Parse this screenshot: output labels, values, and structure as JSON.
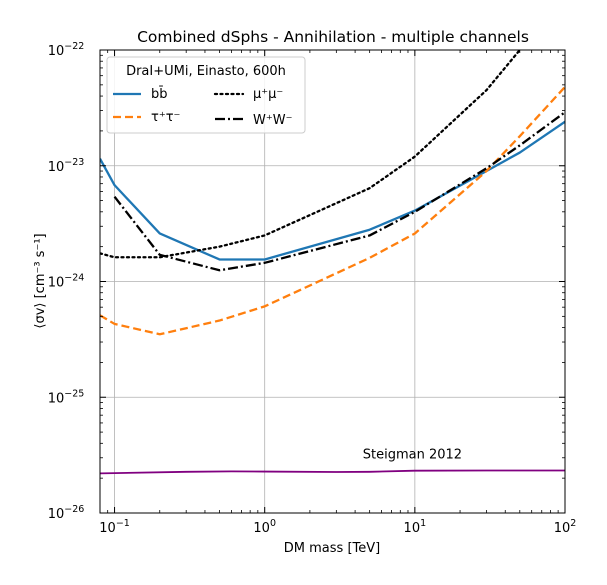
{
  "chart_data": {
    "type": "line",
    "title": "Combined dSphs - Annihilation - multiple channels",
    "xlabel": "DM mass [TeV]",
    "ylabel": "⟨σv⟩ [cm⁻³ s⁻¹]",
    "xscale": "log",
    "yscale": "log",
    "xlim": [
      0.08,
      100
    ],
    "ylim": [
      1e-26,
      1e-22
    ],
    "grid": true,
    "x_ticks": [
      {
        "value": 0.1,
        "base": "10",
        "exp": "−1"
      },
      {
        "value": 1,
        "base": "10",
        "exp": "0"
      },
      {
        "value": 10,
        "base": "10",
        "exp": "1"
      },
      {
        "value": 100,
        "base": "10",
        "exp": "2"
      }
    ],
    "y_ticks": [
      {
        "value": 1e-26,
        "base": "10",
        "exp": "−26"
      },
      {
        "value": 1e-25,
        "base": "10",
        "exp": "−25"
      },
      {
        "value": 1e-24,
        "base": "10",
        "exp": "−24"
      },
      {
        "value": 1e-23,
        "base": "10",
        "exp": "−23"
      },
      {
        "value": 1e-22,
        "base": "10",
        "exp": "−22"
      }
    ],
    "legend": {
      "title": "DraI+UMi, Einasto, 600h",
      "placement": "top-left"
    },
    "series": [
      {
        "id": "bb",
        "label": "bb̄",
        "color": "#1f77b4",
        "style": "solid",
        "x": [
          0.08,
          0.1,
          0.2,
          0.5,
          1,
          5,
          10,
          50,
          100
        ],
        "y": [
          1.15e-23,
          6.8e-24,
          2.6e-24,
          1.55e-24,
          1.55e-24,
          2.8e-24,
          4.1e-24,
          1.3e-23,
          2.4e-23
        ]
      },
      {
        "id": "tautau",
        "label": "τ⁺τ⁻",
        "color": "#ff7f0e",
        "style": "dashed",
        "x": [
          0.08,
          0.1,
          0.2,
          0.5,
          1,
          5,
          10,
          30,
          50,
          100
        ],
        "y": [
          5.1e-25,
          4.3e-25,
          3.5e-25,
          4.6e-25,
          6.1e-25,
          1.6e-24,
          2.6e-24,
          9e-24,
          1.8e-23,
          4.8e-23
        ]
      },
      {
        "id": "mumu",
        "label": "μ⁺μ⁻",
        "color": "#000000",
        "style": "dotted",
        "x": [
          0.08,
          0.1,
          0.2,
          0.5,
          1,
          5,
          10,
          30,
          50
        ],
        "y": [
          1.75e-24,
          1.62e-24,
          1.62e-24,
          2e-24,
          2.5e-24,
          6.4e-24,
          1.2e-23,
          4.5e-23,
          1e-22
        ]
      },
      {
        "id": "ww",
        "label": "W⁺W⁻",
        "color": "#000000",
        "style": "dashdot",
        "x": [
          0.1,
          0.2,
          0.5,
          1,
          5,
          10,
          30,
          50,
          100
        ],
        "y": [
          5.4e-24,
          1.7e-24,
          1.25e-24,
          1.45e-24,
          2.5e-24,
          4e-24,
          9.5e-24,
          1.5e-23,
          2.9e-23
        ]
      },
      {
        "id": "steigman",
        "label": "Steigman 2012",
        "color": "#800080",
        "style": "solid",
        "x": [
          0.08,
          0.1,
          0.3,
          0.6,
          1,
          3,
          5,
          10,
          30,
          100
        ],
        "y": [
          2.2e-26,
          2.21e-26,
          2.27e-26,
          2.29e-26,
          2.28e-26,
          2.26e-26,
          2.27e-26,
          2.32e-26,
          2.33e-26,
          2.33e-26
        ]
      }
    ],
    "annotations": [
      {
        "text": "Steigman 2012",
        "x": 4.5,
        "y": 3.2e-26
      }
    ]
  }
}
